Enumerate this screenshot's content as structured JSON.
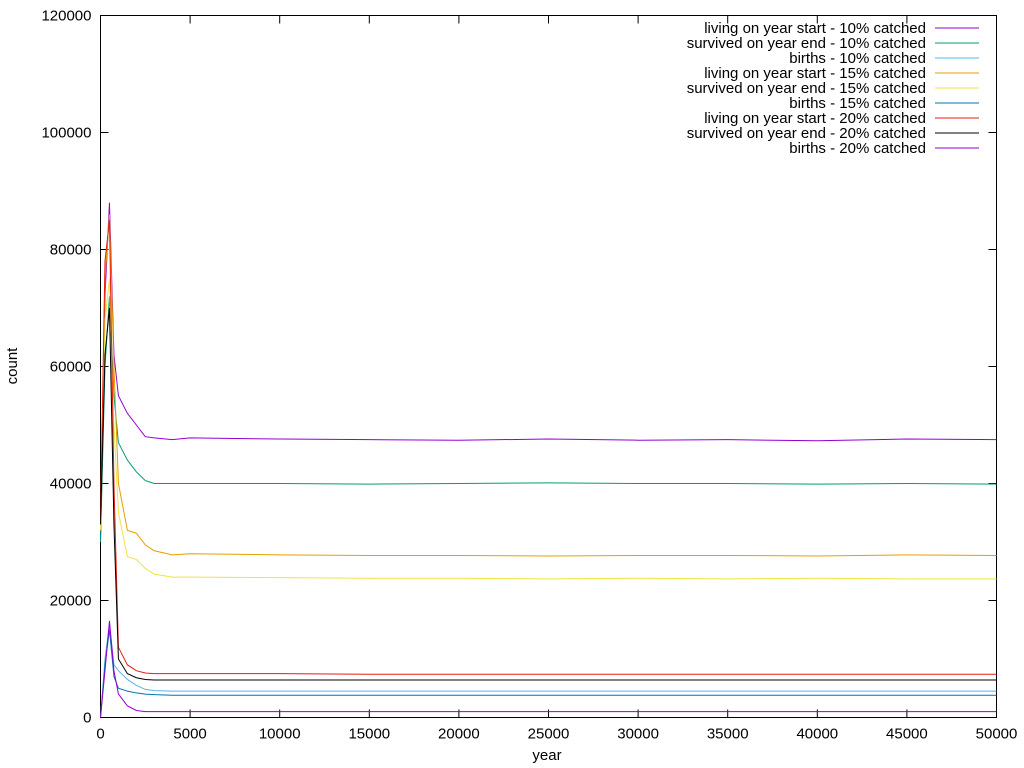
{
  "chart_data": {
    "type": "line",
    "xlabel": "year",
    "ylabel": "count",
    "x": [
      0,
      250,
      500,
      750,
      1000,
      1500,
      2000,
      2500,
      3000,
      4000,
      5000,
      10000,
      15000,
      20000,
      25000,
      30000,
      35000,
      40000,
      45000,
      50000
    ],
    "xlim": [
      0,
      50000
    ],
    "xticks": [
      0,
      5000,
      10000,
      15000,
      20000,
      25000,
      30000,
      35000,
      40000,
      45000,
      50000
    ],
    "ylim": [
      0,
      120000
    ],
    "yticks": [
      0,
      20000,
      40000,
      60000,
      80000,
      100000,
      120000
    ],
    "legend": "top-right",
    "series": [
      {
        "name": "living on year start - 10% catched",
        "color": "#9400d3",
        "values": [
          30000,
          72000,
          88000,
          62000,
          55000,
          52000,
          50000,
          48000,
          47800,
          47500,
          47800,
          47600,
          47500,
          47400,
          47600,
          47400,
          47500,
          47300,
          47600,
          47500
        ]
      },
      {
        "name": "survived on year end - 10% catched",
        "color": "#009e73",
        "values": [
          30000,
          60000,
          72000,
          55000,
          47000,
          44000,
          42000,
          40500,
          40000,
          40000,
          40000,
          40000,
          39900,
          40000,
          40100,
          40000,
          40000,
          39900,
          40000,
          39900
        ]
      },
      {
        "name": "births - 10% catched",
        "color": "#56b4e9",
        "values": [
          0,
          10000,
          16000,
          9000,
          8000,
          6500,
          5500,
          4800,
          4600,
          4500,
          4500,
          4500,
          4500,
          4500,
          4500,
          4500,
          4500,
          4500,
          4500,
          4500
        ]
      },
      {
        "name": "living on year start - 15% catched",
        "color": "#e69f00",
        "values": [
          32000,
          75000,
          86000,
          60000,
          40000,
          32000,
          31500,
          29500,
          28500,
          27800,
          28000,
          27800,
          27700,
          27700,
          27600,
          27700,
          27700,
          27600,
          27800,
          27700
        ]
      },
      {
        "name": "survived on year end - 15% catched",
        "color": "#f0e442",
        "values": [
          32000,
          68000,
          75000,
          50000,
          35000,
          27500,
          27000,
          25500,
          24500,
          24000,
          24000,
          23900,
          23800,
          23800,
          23700,
          23800,
          23700,
          23800,
          23700,
          23700
        ]
      },
      {
        "name": "births - 15% catched",
        "color": "#0072b2",
        "values": [
          0,
          9000,
          15000,
          7000,
          5000,
          4500,
          4200,
          4000,
          3900,
          3800,
          3800,
          3800,
          3800,
          3800,
          3800,
          3800,
          3800,
          3800,
          3800,
          3800
        ]
      },
      {
        "name": "living on year start - 20% catched",
        "color": "#e51e10",
        "values": [
          34000,
          78000,
          85000,
          40000,
          12000,
          9000,
          8000,
          7600,
          7500,
          7500,
          7500,
          7500,
          7400,
          7400,
          7400,
          7400,
          7400,
          7400,
          7400,
          7400
        ]
      },
      {
        "name": "survived on year end - 20% catched",
        "color": "#000000",
        "values": [
          33000,
          62000,
          70000,
          33000,
          10000,
          7500,
          6800,
          6500,
          6400,
          6400,
          6400,
          6400,
          6400,
          6400,
          6400,
          6400,
          6400,
          6400,
          6400,
          6400
        ]
      },
      {
        "name": "births - 20% catched",
        "color": "#9400d3",
        "values": [
          0,
          8000,
          16500,
          8000,
          4000,
          2000,
          1200,
          1000,
          1000,
          1000,
          1000,
          1000,
          1000,
          1000,
          1000,
          1000,
          1000,
          1000,
          1000,
          1000
        ]
      }
    ]
  }
}
